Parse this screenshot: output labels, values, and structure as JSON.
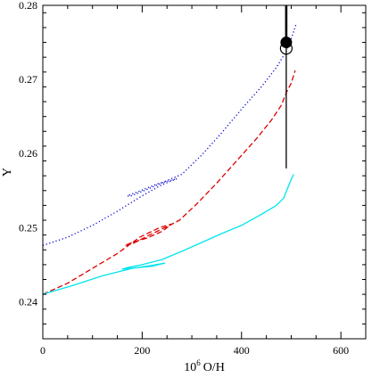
{
  "chart_data": {
    "type": "line",
    "xlabel": "10",
    "xlabel_sup": "6",
    "xlabel_suffix": "O/H",
    "ylabel": "Y",
    "xlim": [
      0,
      650
    ],
    "ylim": [
      0.235,
      0.28
    ],
    "x_ticks": [
      0,
      200,
      400,
      600
    ],
    "y_ticks": [
      0.24,
      0.25,
      0.26,
      0.27,
      0.28
    ],
    "x_tick_labels": [
      "0",
      "200",
      "400",
      "600"
    ],
    "y_tick_labels": [
      "0.24",
      "0.25",
      "0.26",
      "0.27",
      "0.28"
    ],
    "grid": false,
    "series": [
      {
        "style": "dotted",
        "color": "#0000cc",
        "points": [
          [
            0,
            0.2476
          ],
          [
            50,
            0.2487
          ],
          [
            100,
            0.2503
          ],
          [
            150,
            0.2522
          ],
          [
            200,
            0.2543
          ],
          [
            240,
            0.2558
          ],
          [
            270,
            0.2566
          ],
          [
            230,
            0.2559
          ],
          [
            190,
            0.2548
          ],
          [
            170,
            0.2543
          ],
          [
            175,
            0.2542
          ],
          [
            215,
            0.2553
          ],
          [
            255,
            0.2565
          ],
          [
            280,
            0.2572
          ],
          [
            320,
            0.2598
          ],
          [
            360,
            0.2628
          ],
          [
            400,
            0.266
          ],
          [
            440,
            0.269
          ],
          [
            470,
            0.2716
          ],
          [
            490,
            0.2738
          ],
          [
            500,
            0.2755
          ],
          [
            510,
            0.2775
          ]
        ]
      },
      {
        "style": "dashed",
        "color": "#dd0000",
        "points": [
          [
            0,
            0.241
          ],
          [
            50,
            0.2425
          ],
          [
            100,
            0.2445
          ],
          [
            150,
            0.2465
          ],
          [
            195,
            0.2487
          ],
          [
            235,
            0.25
          ],
          [
            260,
            0.2505
          ],
          [
            240,
            0.2495
          ],
          [
            210,
            0.2486
          ],
          [
            180,
            0.248
          ],
          [
            165,
            0.2476
          ],
          [
            180,
            0.2478
          ],
          [
            215,
            0.249
          ],
          [
            255,
            0.2503
          ],
          [
            275,
            0.251
          ],
          [
            310,
            0.2532
          ],
          [
            350,
            0.256
          ],
          [
            390,
            0.259
          ],
          [
            430,
            0.262
          ],
          [
            460,
            0.2645
          ],
          [
            480,
            0.2665
          ],
          [
            490,
            0.2682
          ],
          [
            500,
            0.2695
          ],
          [
            508,
            0.2712
          ]
        ]
      },
      {
        "style": "solid",
        "color": "#00e5ee",
        "points": [
          [
            0,
            0.241
          ],
          [
            60,
            0.2422
          ],
          [
            120,
            0.2435
          ],
          [
            180,
            0.2445
          ],
          [
            220,
            0.2449
          ],
          [
            245,
            0.2452
          ],
          [
            220,
            0.2448
          ],
          [
            190,
            0.2446
          ],
          [
            160,
            0.2444
          ],
          [
            170,
            0.2446
          ],
          [
            200,
            0.245
          ],
          [
            240,
            0.2457
          ],
          [
            280,
            0.2468
          ],
          [
            320,
            0.248
          ],
          [
            360,
            0.2492
          ],
          [
            400,
            0.2503
          ],
          [
            440,
            0.2518
          ],
          [
            470,
            0.253
          ],
          [
            485,
            0.254
          ],
          [
            492,
            0.2552
          ],
          [
            500,
            0.2565
          ],
          [
            505,
            0.2572
          ]
        ]
      }
    ],
    "markers": [
      {
        "kind": "filled-circle",
        "x": 490,
        "y": 0.275,
        "error_low": 0.258,
        "error_high": 0.28
      },
      {
        "kind": "open-circle",
        "x": 490,
        "y": 0.2742
      }
    ]
  }
}
